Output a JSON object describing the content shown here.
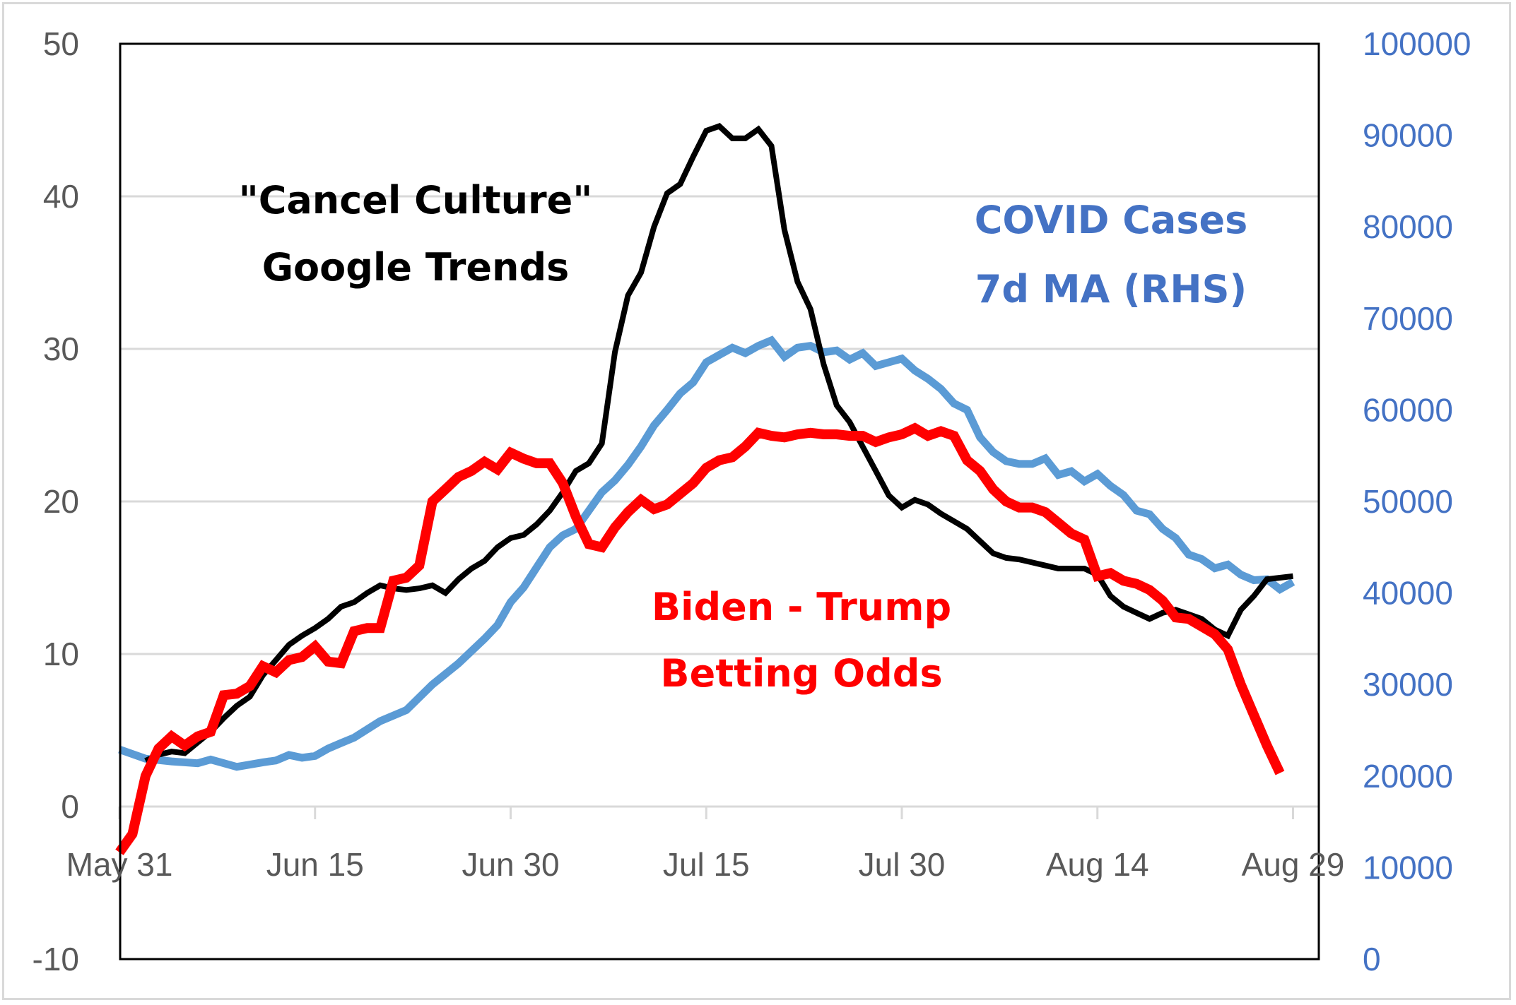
{
  "chart_data": {
    "type": "line",
    "title": "",
    "xlabel": "",
    "ylabel": "",
    "y2label": "",
    "x_start_date": "May 31",
    "x_tick_labels": [
      "May 31",
      "Jun 15",
      "Jun 30",
      "Jul 15",
      "Jul 30",
      "Aug 14",
      "Aug 29"
    ],
    "x_tick_day_offsets": [
      0,
      15,
      30,
      45,
      60,
      75,
      90
    ],
    "xlim_days": [
      0,
      92
    ],
    "ylim": [
      -10,
      50
    ],
    "y_ticks": [
      -10,
      0,
      10,
      20,
      30,
      40,
      50
    ],
    "y2lim": [
      0,
      100000
    ],
    "y2_ticks": [
      0,
      10000,
      20000,
      30000,
      40000,
      50000,
      60000,
      70000,
      80000,
      90000,
      100000
    ],
    "grid": true,
    "annotations": [
      {
        "id": "cancel",
        "lines": [
          "\"Cancel Culture\"",
          "Google Trends"
        ],
        "color": "#000000"
      },
      {
        "id": "covid",
        "lines": [
          "COVID  Cases",
          "7d MA (RHS)"
        ],
        "color": "#4472c4"
      },
      {
        "id": "biden",
        "lines": [
          "Biden - Trump",
          "Betting Odds"
        ],
        "color": "#ff0000"
      }
    ],
    "series": [
      {
        "name": "\"Cancel Culture\" Google Trends",
        "axis": "left",
        "color": "#000000",
        "days": [
          2,
          3,
          4,
          5,
          6,
          7,
          8,
          9,
          10,
          11,
          12,
          13,
          14,
          15,
          16,
          17,
          18,
          19,
          20,
          21,
          22,
          23,
          24,
          25,
          26,
          27,
          28,
          29,
          30,
          31,
          32,
          33,
          34,
          35,
          36,
          37,
          38,
          39,
          40,
          41,
          42,
          43,
          44,
          45,
          46,
          47,
          48,
          49,
          50,
          51,
          52,
          53,
          54,
          55,
          56,
          57,
          58,
          59,
          60,
          61,
          62,
          63,
          64,
          65,
          66,
          67,
          68,
          69,
          70,
          71,
          72,
          73,
          74,
          75,
          76,
          77,
          78,
          79,
          80,
          81,
          82,
          83,
          84,
          85,
          86,
          87,
          88,
          89,
          90
        ],
        "values": [
          3.0,
          3.4,
          3.6,
          3.5,
          4.2,
          4.9,
          5.8,
          6.6,
          7.2,
          8.6,
          9.6,
          10.6,
          11.2,
          11.7,
          12.3,
          13.1,
          13.4,
          14.0,
          14.5,
          14.3,
          14.2,
          14.3,
          14.5,
          14.0,
          14.9,
          15.6,
          16.1,
          17.0,
          17.6,
          17.8,
          18.5,
          19.4,
          20.6,
          22.0,
          22.5,
          23.8,
          29.8,
          33.5,
          35.0,
          38.0,
          40.2,
          40.8,
          42.6,
          44.3,
          44.6,
          43.8,
          43.8,
          44.4,
          43.3,
          37.8,
          34.4,
          32.6,
          29.0,
          26.3,
          25.2,
          23.6,
          22.0,
          20.4,
          19.6,
          20.1,
          19.8,
          19.2,
          18.7,
          18.2,
          17.4,
          16.6,
          16.3,
          16.2,
          16.0,
          15.8,
          15.6,
          15.6,
          15.6,
          15.2,
          13.8,
          13.1,
          12.7,
          12.3,
          12.7,
          12.9,
          12.6,
          12.3,
          11.6,
          11.2,
          12.9,
          13.8,
          14.9,
          15.0,
          15.1
        ]
      },
      {
        "name": "Biden - Trump Betting Odds",
        "axis": "left",
        "color": "#ff0000",
        "days": [
          0,
          1,
          2,
          3,
          4,
          5,
          6,
          7,
          8,
          9,
          10,
          11,
          12,
          13,
          14,
          15,
          16,
          17,
          18,
          19,
          20,
          21,
          22,
          23,
          24,
          25,
          26,
          27,
          28,
          29,
          30,
          31,
          32,
          33,
          34,
          35,
          36,
          37,
          38,
          39,
          40,
          41,
          42,
          43,
          44,
          45,
          46,
          47,
          48,
          49,
          50,
          51,
          52,
          53,
          54,
          55,
          56,
          57,
          58,
          59,
          60,
          61,
          62,
          63,
          64,
          65,
          66,
          67,
          68,
          69,
          70,
          71,
          72,
          73,
          74,
          75,
          76,
          77,
          78,
          79,
          80,
          81,
          82,
          83,
          84,
          85,
          86,
          87,
          88,
          89
        ],
        "values": [
          -3.0,
          -1.8,
          2.0,
          3.8,
          4.6,
          4.0,
          4.6,
          4.9,
          7.3,
          7.4,
          7.9,
          9.2,
          8.8,
          9.6,
          9.8,
          10.5,
          9.5,
          9.4,
          11.5,
          11.7,
          11.7,
          14.8,
          15.0,
          15.8,
          20.0,
          20.8,
          21.6,
          22.0,
          22.6,
          22.1,
          23.2,
          22.8,
          22.5,
          22.5,
          21.2,
          19.0,
          17.2,
          17.0,
          18.3,
          19.3,
          20.1,
          19.5,
          19.8,
          20.5,
          21.2,
          22.2,
          22.7,
          22.9,
          23.6,
          24.5,
          24.3,
          24.2,
          24.4,
          24.5,
          24.4,
          24.4,
          24.3,
          24.3,
          23.9,
          24.2,
          24.4,
          24.8,
          24.3,
          24.6,
          24.3,
          22.7,
          22.0,
          20.8,
          20.0,
          19.6,
          19.6,
          19.3,
          18.6,
          17.9,
          17.5,
          15.1,
          15.3,
          14.8,
          14.6,
          14.2,
          13.5,
          12.4,
          12.3,
          11.8,
          11.3,
          10.3,
          8.0,
          6.0,
          4.0,
          2.2
        ]
      },
      {
        "name": "COVID Cases 7d MA (RHS)",
        "axis": "right",
        "color": "#5b9bd5",
        "days": [
          0,
          2,
          4,
          6,
          7,
          9,
          11,
          12,
          13,
          14,
          15,
          16,
          17,
          18,
          20,
          22,
          24,
          26,
          28,
          29,
          30,
          31,
          32,
          33,
          34,
          35,
          36,
          37,
          38,
          39,
          40,
          41,
          42,
          43,
          44,
          45,
          46,
          47,
          48,
          49,
          50,
          51,
          52,
          53,
          54,
          55,
          56,
          57,
          58,
          59,
          60,
          61,
          62,
          63,
          64,
          65,
          66,
          67,
          68,
          69,
          70,
          71,
          72,
          73,
          74,
          75,
          76,
          77,
          78,
          79,
          80,
          81,
          82,
          83,
          84,
          85,
          86,
          87,
          88,
          89,
          90
        ],
        "values": [
          22900,
          21900,
          21600,
          21400,
          21800,
          21000,
          21500,
          21700,
          22300,
          22000,
          22200,
          23000,
          23600,
          24200,
          26000,
          27200,
          30000,
          32300,
          35000,
          36500,
          39000,
          40600,
          42800,
          45000,
          46300,
          47000,
          49000,
          51000,
          52300,
          54000,
          56000,
          58300,
          60000,
          61800,
          63000,
          65200,
          66000,
          66800,
          66200,
          67000,
          67600,
          65800,
          66800,
          67000,
          66300,
          66500,
          65500,
          66200,
          64800,
          65200,
          65600,
          64300,
          63400,
          62300,
          60700,
          60000,
          57000,
          55400,
          54400,
          54100,
          54100,
          54700,
          52900,
          53300,
          52200,
          53000,
          51700,
          50700,
          49000,
          48600,
          47000,
          46000,
          44200,
          43700,
          42700,
          43100,
          42000,
          41400,
          41500,
          40400,
          41200
        ]
      }
    ]
  }
}
